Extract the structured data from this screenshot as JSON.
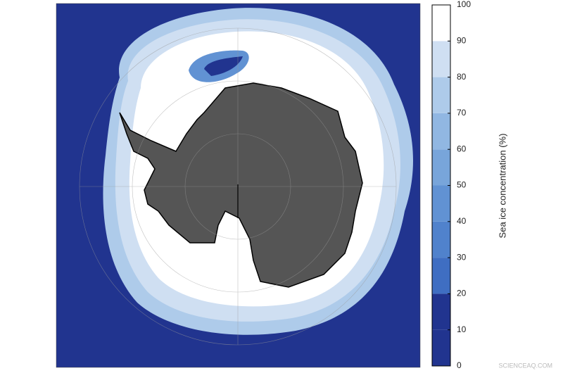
{
  "colorbar": {
    "label": "Sea ice concentration (%)",
    "ticks": [
      0,
      10,
      20,
      30,
      40,
      50,
      60,
      70,
      80,
      90,
      100
    ],
    "colors": [
      "#21348f",
      "#21348f",
      "#3f6ec2",
      "#5082cc",
      "#6192d3",
      "#78a5da",
      "#91b7e2",
      "#aecbea",
      "#cfdff2",
      "#ffffff"
    ]
  },
  "watermark": "SCIENCEAQ.COM"
}
